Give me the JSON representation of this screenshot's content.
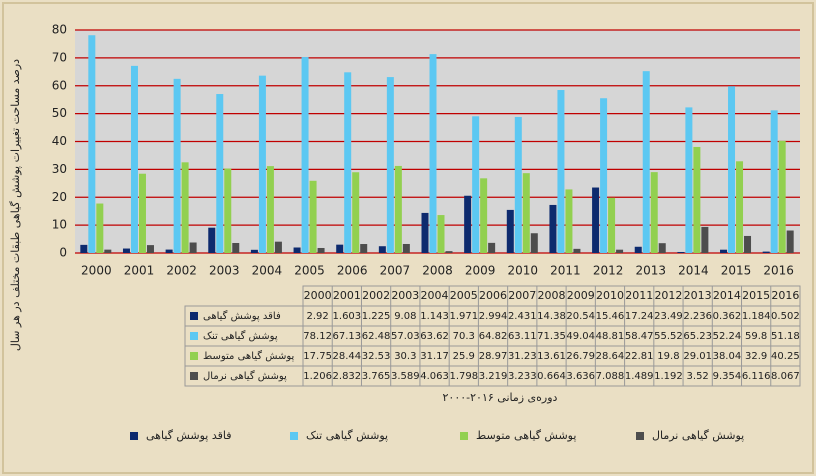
{
  "chart_data": {
    "type": "bar",
    "y_label": "درصد مساحت تغییرات پوشش گیاهی طبقات مختلف در هر سال",
    "x_label": "دوره‌ی زمانی ۲۰۱۶-۲۰۰۰",
    "categories": [
      "2000",
      "2001",
      "2002",
      "2003",
      "2004",
      "2005",
      "2006",
      "2007",
      "2008",
      "2009",
      "2010",
      "2011",
      "2012",
      "2013",
      "2014",
      "2015",
      "2016"
    ],
    "series": [
      {
        "name": "فاقد پوشش گیاهی",
        "color": "#0d2a6e",
        "values": [
          2.92,
          1.603,
          1.225,
          9.08,
          1.143,
          1.971,
          2.994,
          2.431,
          14.38,
          20.54,
          15.46,
          17.24,
          23.49,
          2.236,
          0.362,
          1.184,
          0.502
        ]
      },
      {
        "name": "پوشش گیاهی تنک",
        "color": "#5cc8f2",
        "values": [
          78.12,
          67.13,
          62.48,
          57.03,
          63.62,
          70.3,
          64.82,
          63.11,
          71.35,
          49.04,
          48.81,
          58.47,
          55.52,
          65.23,
          52.24,
          59.8,
          51.18
        ]
      },
      {
        "name": "پوشش گیاهی متوسط",
        "color": "#92d050",
        "values": [
          17.75,
          28.44,
          32.53,
          30.3,
          31.17,
          25.9,
          28.97,
          31.23,
          13.61,
          26.79,
          28.64,
          22.81,
          19.8,
          29.01,
          38.04,
          32.9,
          40.25
        ]
      },
      {
        "name": "پوشش گیاهی نرمال",
        "color": "#4d4d4d",
        "values": [
          1.206,
          2.832,
          3.765,
          3.589,
          4.063,
          1.798,
          3.219,
          3.233,
          0.664,
          3.636,
          7.088,
          1.489,
          1.192,
          3.52,
          9.354,
          6.116,
          8.067
        ]
      }
    ],
    "ylim": [
      0,
      80
    ],
    "yticks": [
      0,
      10,
      20,
      30,
      40,
      50,
      60,
      70,
      80
    ],
    "grid": true,
    "grid_color": "#c00000",
    "legend": "bottom"
  }
}
